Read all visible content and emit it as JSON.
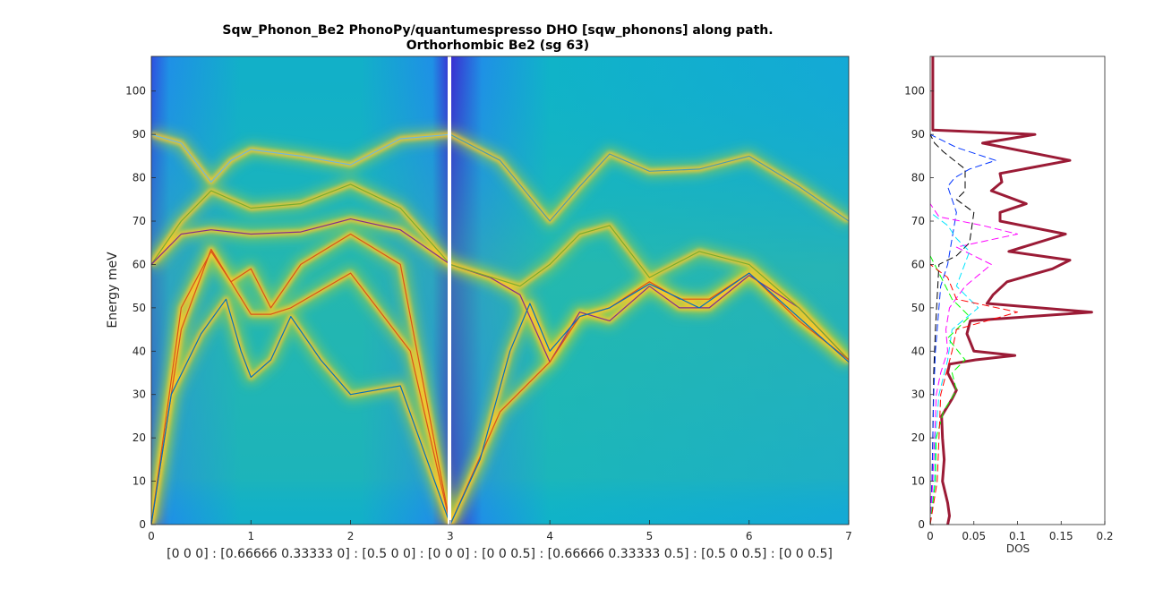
{
  "title_line1": "Sqw_Phonon_Be2 PhonoPy/quantumespresso DHO [sqw_phonons] along path.",
  "title_line2": "Orthorhombic Be2 (sg 63)",
  "chart_data": [
    {
      "type": "heatmap",
      "ylabel": "Energy meV",
      "xlabel": "[0 0 0] : [0.66666 0.33333 0] : [0.5 0 0] : [0 0 0] : [0 0 0.5] : [0.66666 0.33333 0.5] : [0.5 0 0.5] : [0 0 0.5]",
      "xlim": [
        0,
        7
      ],
      "ylim": [
        0,
        108
      ],
      "xticks": [
        0,
        1,
        2,
        3,
        4,
        5,
        6,
        7
      ],
      "yticks": [
        0,
        10,
        20,
        30,
        40,
        50,
        60,
        70,
        80,
        90,
        100
      ],
      "colormap": [
        "#3b2bd1",
        "#1f7fe8",
        "#10b3c8",
        "#36c08f",
        "#a9d23a",
        "#f7c72e",
        "#fff11a"
      ],
      "background_color": "#0fb5c4",
      "discontinuity_x": 3,
      "branches": [
        {
          "color": "#6db8de",
          "points": [
            [
              0,
              90
            ],
            [
              0.3,
              88
            ],
            [
              0.6,
              79
            ],
            [
              0.8,
              84
            ],
            [
              1.0,
              86.5
            ],
            [
              1.5,
              85
            ],
            [
              2.0,
              83
            ],
            [
              2.5,
              89
            ],
            [
              3.0,
              90
            ]
          ]
        },
        {
          "color": "#77ac30",
          "points": [
            [
              0,
              60
            ],
            [
              0.3,
              70
            ],
            [
              0.6,
              77
            ],
            [
              1.0,
              73
            ],
            [
              1.5,
              74
            ],
            [
              2.0,
              78.5
            ],
            [
              2.5,
              73
            ],
            [
              3.0,
              60
            ]
          ]
        },
        {
          "color": "#7e2f8e",
          "points": [
            [
              0,
              60
            ],
            [
              0.3,
              67
            ],
            [
              0.6,
              68
            ],
            [
              1.0,
              67
            ],
            [
              1.5,
              67.5
            ],
            [
              2.0,
              70.5
            ],
            [
              2.5,
              68
            ],
            [
              3.0,
              60
            ]
          ]
        },
        {
          "color": "#d95319",
          "points": [
            [
              0,
              0
            ],
            [
              0.3,
              45
            ],
            [
              0.6,
              63.5
            ],
            [
              0.8,
              56
            ],
            [
              1.0,
              59
            ],
            [
              1.2,
              50
            ],
            [
              1.5,
              60
            ],
            [
              2.0,
              67
            ],
            [
              2.5,
              60
            ],
            [
              3.0,
              0
            ]
          ]
        },
        {
          "color": "#d95319",
          "points": [
            [
              0,
              0
            ],
            [
              0.3,
              50
            ],
            [
              0.6,
              63
            ],
            [
              0.8,
              56
            ],
            [
              1.0,
              48.5
            ],
            [
              1.2,
              48.5
            ],
            [
              1.4,
              50
            ],
            [
              2.0,
              58
            ],
            [
              2.6,
              40
            ],
            [
              3.0,
              0
            ]
          ]
        },
        {
          "color": "#0072bd",
          "points": [
            [
              0,
              0
            ],
            [
              0.2,
              30
            ],
            [
              0.5,
              44
            ],
            [
              0.75,
              52
            ],
            [
              0.9,
              40
            ],
            [
              1.0,
              34
            ],
            [
              1.2,
              38
            ],
            [
              1.4,
              48
            ],
            [
              1.7,
              38
            ],
            [
              2.0,
              30
            ],
            [
              2.5,
              32
            ],
            [
              3.0,
              0
            ]
          ]
        },
        {
          "color": "#4a9cae",
          "points": [
            [
              3,
              90
            ],
            [
              3.5,
              84
            ],
            [
              4.0,
              70
            ],
            [
              4.3,
              78
            ],
            [
              4.6,
              85.5
            ],
            [
              5.0,
              81.5
            ],
            [
              5.5,
              82
            ],
            [
              6.0,
              85
            ],
            [
              6.5,
              78
            ],
            [
              7.0,
              70
            ]
          ]
        },
        {
          "color": "#7e2f8e",
          "points": [
            [
              3,
              60
            ],
            [
              3.4,
              57
            ],
            [
              3.7,
              53
            ],
            [
              4.0,
              37.5
            ],
            [
              4.3,
              49
            ],
            [
              4.6,
              47
            ],
            [
              5.0,
              55
            ],
            [
              5.3,
              50
            ],
            [
              5.6,
              50
            ],
            [
              6.0,
              57.5
            ],
            [
              6.5,
              50
            ],
            [
              7.0,
              38
            ]
          ]
        },
        {
          "color": "#77ac30",
          "points": [
            [
              3,
              60
            ],
            [
              3.7,
              55
            ],
            [
              4.0,
              60
            ],
            [
              4.3,
              67
            ],
            [
              4.6,
              69
            ],
            [
              5.0,
              57
            ],
            [
              5.5,
              63
            ],
            [
              6.0,
              60
            ],
            [
              6.5,
              50
            ],
            [
              7.0,
              38
            ]
          ]
        },
        {
          "color": "#d95319",
          "points": [
            [
              3,
              0
            ],
            [
              3.5,
              26
            ],
            [
              4.0,
              37.5
            ],
            [
              4.3,
              48
            ],
            [
              4.6,
              50
            ],
            [
              5.0,
              56
            ],
            [
              5.3,
              52
            ],
            [
              5.6,
              52
            ],
            [
              6.0,
              58
            ],
            [
              6.5,
              47
            ],
            [
              7.0,
              38
            ]
          ]
        },
        {
          "color": "#0072bd",
          "points": [
            [
              3,
              0
            ],
            [
              3.3,
              15
            ],
            [
              3.6,
              40
            ],
            [
              3.8,
              51
            ],
            [
              4.0,
              40
            ],
            [
              4.3,
              48
            ],
            [
              4.6,
              50
            ],
            [
              5.0,
              55.5
            ],
            [
              5.5,
              50
            ],
            [
              6.0,
              58
            ],
            [
              7.0,
              37.5
            ]
          ]
        }
      ]
    },
    {
      "type": "line",
      "xlabel": "DOS",
      "ylabel": "",
      "xlim": [
        0,
        0.2
      ],
      "ylim": [
        0,
        108
      ],
      "xticks": [
        0,
        0.05,
        0.1,
        0.15,
        0.2
      ],
      "xticklabels": [
        "0",
        "0.05",
        "0.1",
        "0.15",
        "0.2"
      ],
      "yticks": [
        0,
        10,
        20,
        30,
        40,
        50,
        60,
        70,
        80,
        90,
        100
      ],
      "series": [
        {
          "color": "#9b1b36",
          "dash": "solid",
          "width": 3,
          "points": [
            [
              0.02,
              0
            ],
            [
              0.022,
              2
            ],
            [
              0.02,
              5
            ],
            [
              0.014,
              10
            ],
            [
              0.016,
              15
            ],
            [
              0.014,
              20
            ],
            [
              0.013,
              25
            ],
            [
              0.025,
              29
            ],
            [
              0.03,
              31
            ],
            [
              0.02,
              35
            ],
            [
              0.022,
              37
            ],
            [
              0.052,
              38
            ],
            [
              0.097,
              39
            ],
            [
              0.05,
              40
            ],
            [
              0.042,
              44
            ],
            [
              0.046,
              47
            ],
            [
              0.185,
              49
            ],
            [
              0.065,
              51
            ],
            [
              0.072,
              53
            ],
            [
              0.088,
              56
            ],
            [
              0.14,
              59
            ],
            [
              0.16,
              61
            ],
            [
              0.09,
              63
            ],
            [
              0.155,
              67
            ],
            [
              0.08,
              70
            ],
            [
              0.08,
              72
            ],
            [
              0.11,
              74
            ],
            [
              0.07,
              77
            ],
            [
              0.082,
              79
            ],
            [
              0.08,
              81
            ],
            [
              0.16,
              84
            ],
            [
              0.06,
              88
            ],
            [
              0.12,
              90
            ],
            [
              0.003,
              91
            ],
            [
              0.003,
              108
            ]
          ]
        },
        {
          "color": "#000000",
          "dash": "8,4",
          "width": 1,
          "points": [
            [
              0,
              0
            ],
            [
              0.002,
              10
            ],
            [
              0.003,
              20
            ],
            [
              0.004,
              35
            ],
            [
              0.006,
              45
            ],
            [
              0.01,
              60
            ],
            [
              0.03,
              62
            ],
            [
              0.045,
              65
            ],
            [
              0.05,
              72
            ],
            [
              0.03,
              75
            ],
            [
              0.04,
              77
            ],
            [
              0.04,
              82
            ],
            [
              0.015,
              86
            ],
            [
              0.005,
              88
            ],
            [
              0,
              90
            ]
          ]
        },
        {
          "color": "#0033ff",
          "dash": "8,4",
          "width": 1,
          "points": [
            [
              0,
              0
            ],
            [
              0.002,
              10
            ],
            [
              0.003,
              20
            ],
            [
              0.004,
              30
            ],
            [
              0.006,
              40
            ],
            [
              0.012,
              55
            ],
            [
              0.02,
              60
            ],
            [
              0.03,
              72
            ],
            [
              0.02,
              78
            ],
            [
              0.028,
              80
            ],
            [
              0.045,
              82
            ],
            [
              0.075,
              84
            ],
            [
              0.03,
              87
            ],
            [
              0,
              90
            ]
          ]
        },
        {
          "color": "#ff00ff",
          "dash": "8,4",
          "width": 1,
          "points": [
            [
              0,
              0
            ],
            [
              0.003,
              10
            ],
            [
              0.005,
              20
            ],
            [
              0.007,
              30
            ],
            [
              0.012,
              35
            ],
            [
              0.02,
              40
            ],
            [
              0.018,
              45
            ],
            [
              0.022,
              50
            ],
            [
              0.04,
              55
            ],
            [
              0.07,
              60
            ],
            [
              0.05,
              62
            ],
            [
              0.03,
              64
            ],
            [
              0.1,
              67
            ],
            [
              0.06,
              69
            ],
            [
              0.01,
              71
            ],
            [
              0,
              74
            ]
          ]
        },
        {
          "color": "#00e5ff",
          "dash": "8,4",
          "width": 1,
          "points": [
            [
              0,
              0
            ],
            [
              0.005,
              10
            ],
            [
              0.006,
              20
            ],
            [
              0.01,
              30
            ],
            [
              0.02,
              38
            ],
            [
              0.025,
              45
            ],
            [
              0.055,
              50
            ],
            [
              0.03,
              55
            ],
            [
              0.045,
              63
            ],
            [
              0.03,
              66
            ],
            [
              0.02,
              69
            ],
            [
              0,
              72
            ]
          ]
        },
        {
          "color": "#00ff00",
          "dash": "8,4",
          "width": 1,
          "points": [
            [
              0,
              0
            ],
            [
              0.006,
              10
            ],
            [
              0.007,
              20
            ],
            [
              0.015,
              26
            ],
            [
              0.03,
              31
            ],
            [
              0.025,
              35
            ],
            [
              0.04,
              38
            ],
            [
              0.02,
              43
            ],
            [
              0.045,
              48
            ],
            [
              0.025,
              52
            ],
            [
              0.01,
              58
            ],
            [
              0,
              62
            ]
          ]
        },
        {
          "color": "#ff0000",
          "dash": "8,4",
          "width": 1,
          "points": [
            [
              0,
              0
            ],
            [
              0.008,
              10
            ],
            [
              0.01,
              20
            ],
            [
              0.012,
              30
            ],
            [
              0.025,
              40
            ],
            [
              0.03,
              45
            ],
            [
              0.1,
              49
            ],
            [
              0.03,
              52
            ],
            [
              0.02,
              57
            ],
            [
              0,
              60
            ]
          ]
        }
      ]
    }
  ]
}
